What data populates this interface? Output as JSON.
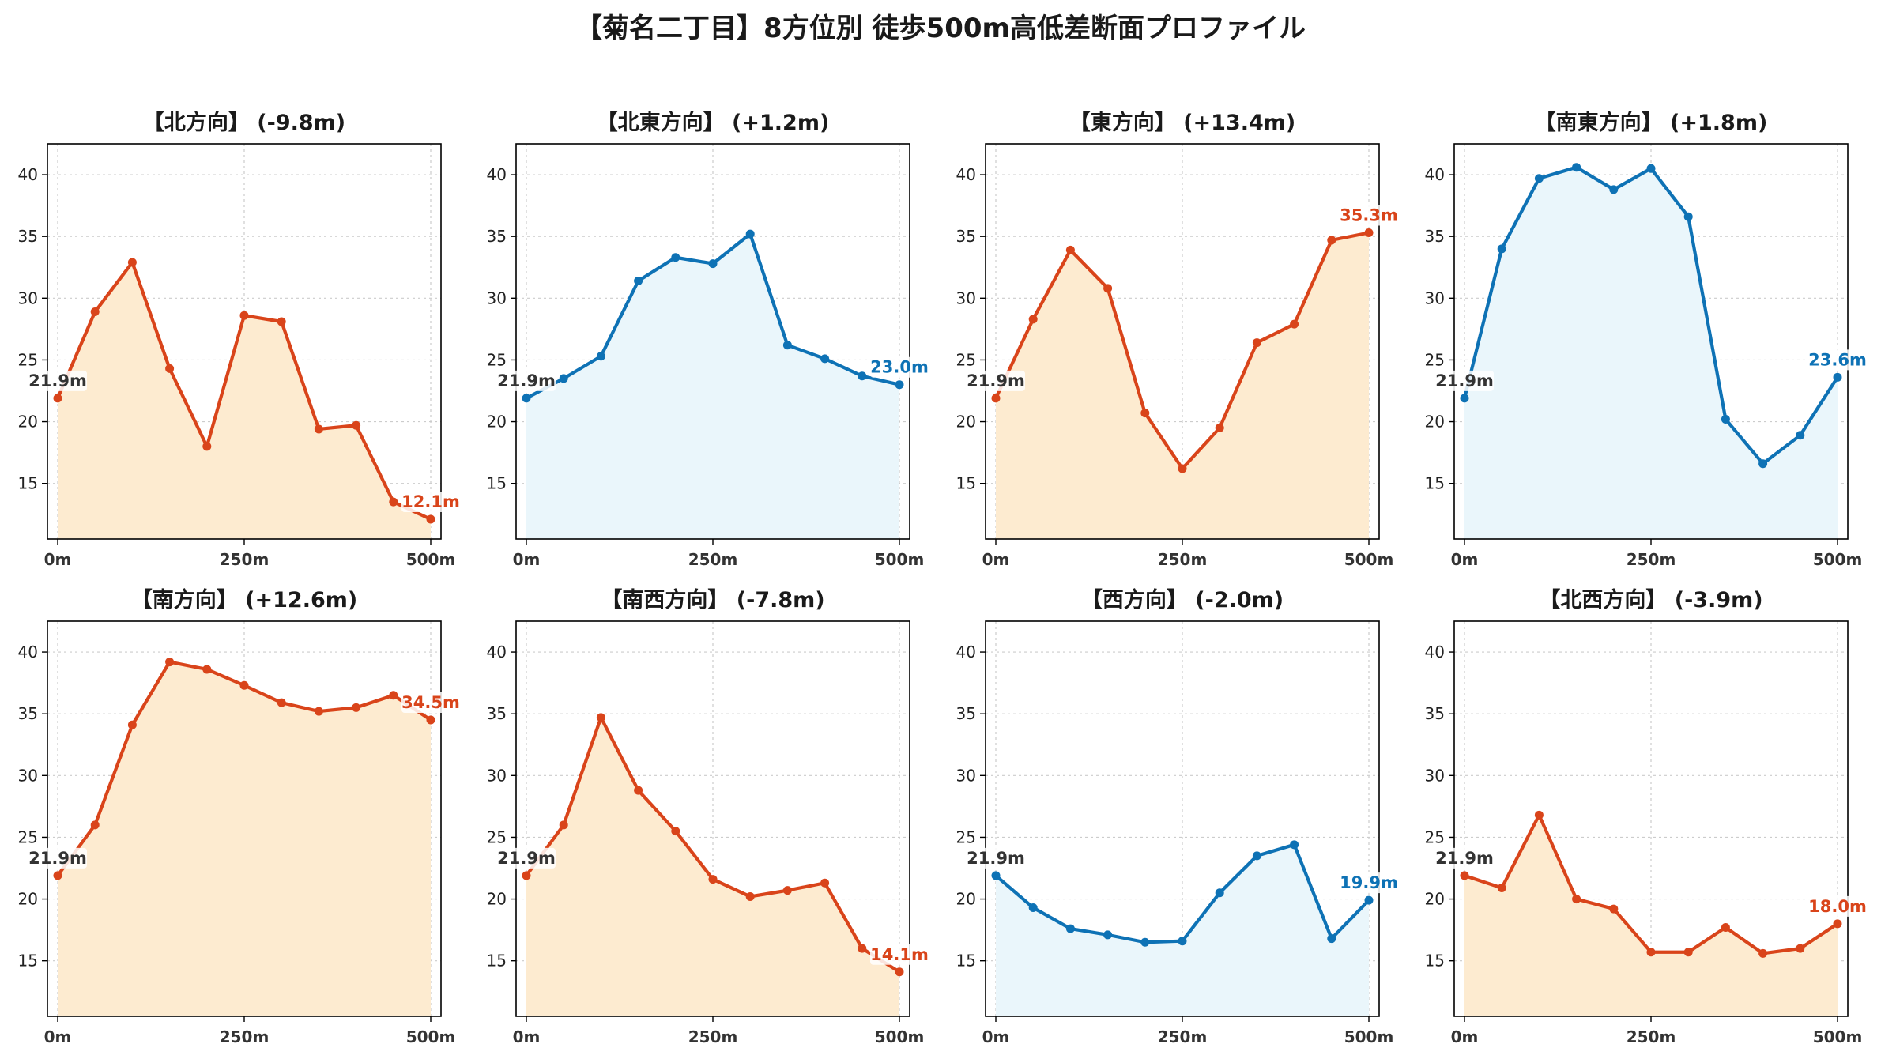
{
  "title": "【菊名二丁目】8方位別 徒歩500m高低差断面プロファイル",
  "colors": {
    "up": "#d9441a",
    "up_fill": "#fdebd0",
    "down": "#0e72b5",
    "down_fill": "#eaf6fb",
    "start_label": "#333333",
    "grid": "#cccccc"
  },
  "chart_data": [
    {
      "type": "area",
      "title": "【北方向】 (-9.8m)",
      "trend": "up",
      "x": [
        0,
        50,
        100,
        150,
        200,
        250,
        300,
        350,
        400,
        450,
        500
      ],
      "values": [
        21.9,
        28.9,
        32.9,
        24.3,
        18.0,
        28.6,
        28.1,
        19.4,
        19.7,
        13.5,
        12.1
      ],
      "start_label": "21.9m",
      "end_label": "12.1m",
      "ylim": [
        10.5,
        42.5
      ],
      "yticks": [
        15,
        20,
        25,
        30,
        35,
        40
      ],
      "xticks": [
        "0m",
        "250m",
        "500m"
      ],
      "grid": true
    },
    {
      "type": "area",
      "title": "【北東方向】 (+1.2m)",
      "trend": "down",
      "x": [
        0,
        50,
        100,
        150,
        200,
        250,
        300,
        350,
        400,
        450,
        500
      ],
      "values": [
        21.9,
        23.5,
        25.3,
        31.4,
        33.3,
        32.8,
        35.2,
        26.2,
        25.1,
        23.7,
        23.0
      ],
      "start_label": "21.9m",
      "end_label": "23.0m",
      "ylim": [
        10.5,
        42.5
      ],
      "yticks": [
        15,
        20,
        25,
        30,
        35,
        40
      ],
      "xticks": [
        "0m",
        "250m",
        "500m"
      ],
      "grid": true
    },
    {
      "type": "area",
      "title": "【東方向】 (+13.4m)",
      "trend": "up",
      "x": [
        0,
        50,
        100,
        150,
        200,
        250,
        300,
        350,
        400,
        450,
        500
      ],
      "values": [
        21.9,
        28.3,
        33.9,
        30.8,
        20.7,
        16.2,
        19.5,
        26.4,
        27.9,
        34.7,
        35.3
      ],
      "start_label": "21.9m",
      "end_label": "35.3m",
      "ylim": [
        10.5,
        42.5
      ],
      "yticks": [
        15,
        20,
        25,
        30,
        35,
        40
      ],
      "xticks": [
        "0m",
        "250m",
        "500m"
      ],
      "grid": true
    },
    {
      "type": "area",
      "title": "【南東方向】 (+1.8m)",
      "trend": "down",
      "x": [
        0,
        50,
        100,
        150,
        200,
        250,
        300,
        350,
        400,
        450,
        500
      ],
      "values": [
        21.9,
        34.0,
        39.7,
        40.6,
        38.8,
        40.5,
        36.6,
        20.2,
        16.6,
        18.9,
        23.6
      ],
      "start_label": "21.9m",
      "end_label": "23.6m",
      "ylim": [
        10.5,
        42.5
      ],
      "yticks": [
        15,
        20,
        25,
        30,
        35,
        40
      ],
      "xticks": [
        "0m",
        "250m",
        "500m"
      ],
      "grid": true
    },
    {
      "type": "area",
      "title": "【南方向】 (+12.6m)",
      "trend": "up",
      "x": [
        0,
        50,
        100,
        150,
        200,
        250,
        300,
        350,
        400,
        450,
        500
      ],
      "values": [
        21.9,
        26.0,
        34.1,
        39.2,
        38.6,
        37.3,
        35.9,
        35.2,
        35.5,
        36.5,
        34.5
      ],
      "start_label": "21.9m",
      "end_label": "34.5m",
      "ylim": [
        10.5,
        42.5
      ],
      "yticks": [
        15,
        20,
        25,
        30,
        35,
        40
      ],
      "xticks": [
        "0m",
        "250m",
        "500m"
      ],
      "grid": true
    },
    {
      "type": "area",
      "title": "【南西方向】 (-7.8m)",
      "trend": "up",
      "x": [
        0,
        50,
        100,
        150,
        200,
        250,
        300,
        350,
        400,
        450,
        500
      ],
      "values": [
        21.9,
        26.0,
        34.7,
        28.8,
        25.5,
        21.6,
        20.2,
        20.7,
        21.3,
        16.0,
        14.1
      ],
      "start_label": "21.9m",
      "end_label": "14.1m",
      "ylim": [
        10.5,
        42.5
      ],
      "yticks": [
        15,
        20,
        25,
        30,
        35,
        40
      ],
      "xticks": [
        "0m",
        "250m",
        "500m"
      ],
      "grid": true
    },
    {
      "type": "area",
      "title": "【西方向】 (-2.0m)",
      "trend": "down",
      "x": [
        0,
        50,
        100,
        150,
        200,
        250,
        300,
        350,
        400,
        450,
        500
      ],
      "values": [
        21.9,
        19.3,
        17.6,
        17.1,
        16.5,
        16.6,
        20.5,
        23.5,
        24.4,
        16.8,
        19.9
      ],
      "start_label": "21.9m",
      "end_label": "19.9m",
      "ylim": [
        10.5,
        42.5
      ],
      "yticks": [
        15,
        20,
        25,
        30,
        35,
        40
      ],
      "xticks": [
        "0m",
        "250m",
        "500m"
      ],
      "grid": true
    },
    {
      "type": "area",
      "title": "【北西方向】 (-3.9m)",
      "trend": "up",
      "x": [
        0,
        50,
        100,
        150,
        200,
        250,
        300,
        350,
        400,
        450,
        500
      ],
      "values": [
        21.9,
        20.9,
        26.8,
        20.0,
        19.2,
        15.7,
        15.7,
        17.7,
        15.6,
        16.0,
        18.0
      ],
      "start_label": "21.9m",
      "end_label": "18.0m",
      "ylim": [
        10.5,
        42.5
      ],
      "yticks": [
        15,
        20,
        25,
        30,
        35,
        40
      ],
      "xticks": [
        "0m",
        "250m",
        "500m"
      ],
      "grid": true
    }
  ]
}
